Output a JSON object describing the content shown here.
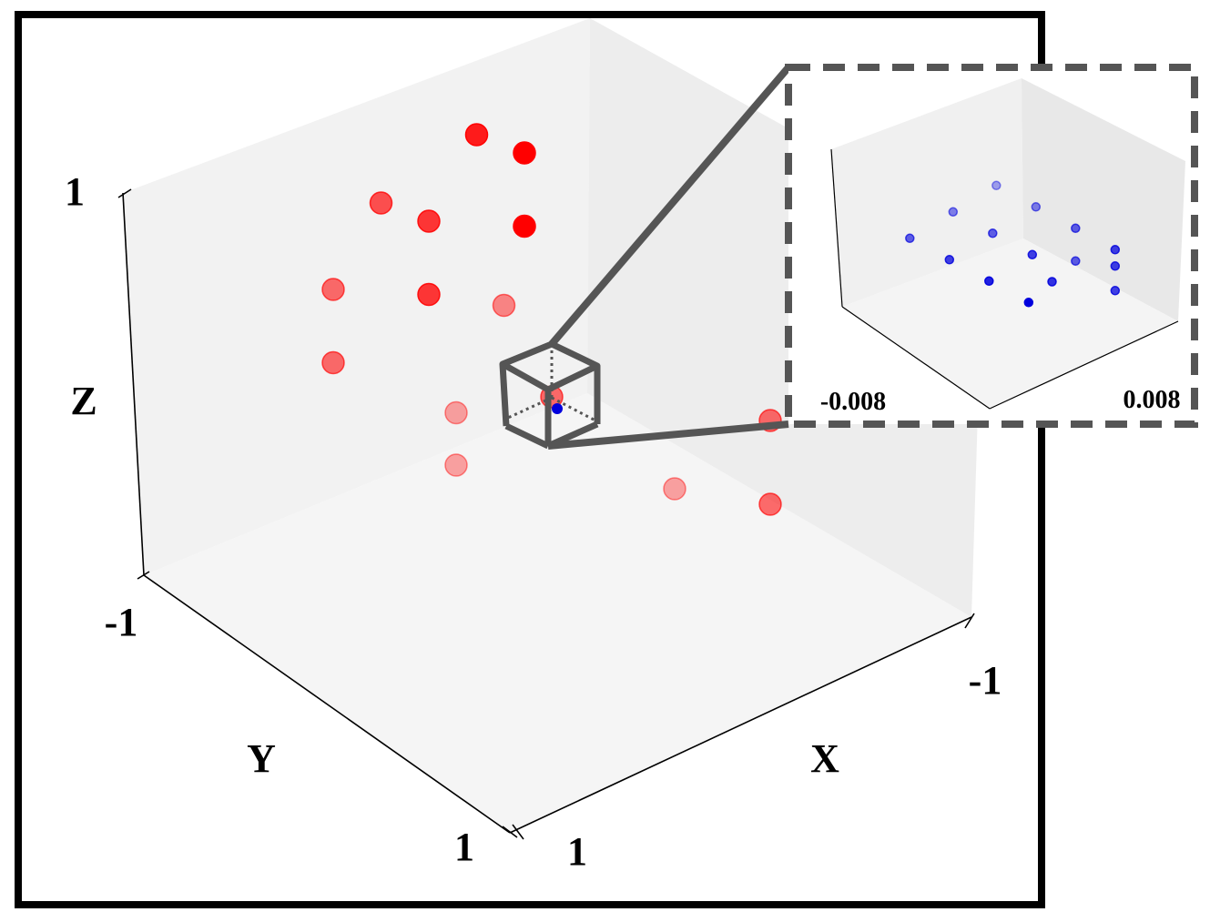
{
  "chart_data": [
    {
      "type": "scatter",
      "projection": "3d",
      "title": "",
      "axes": {
        "x": {
          "label": "X",
          "range": [
            1,
            -1
          ],
          "tick_labels": [
            "1",
            "-1"
          ]
        },
        "y": {
          "label": "Y",
          "range": [
            -1,
            1
          ],
          "tick_labels": [
            "-1",
            "1"
          ]
        },
        "z": {
          "label": "Z",
          "range": [
            -1,
            1
          ],
          "tick_labels": [
            "-1",
            "1"
          ]
        }
      },
      "grid": false,
      "colors": {
        "main_points": "#ff0000",
        "inset_points": "#0000dd",
        "zoom_box": "#555555"
      },
      "series": [
        {
          "color": "#ff0000",
          "points": [
            {
              "x": 0.5,
              "y": 0.0,
              "z": -0.2
            },
            {
              "x": 0.5,
              "y": 0.5,
              "z": -0.2
            },
            {
              "x": 0.5,
              "y": 0.5,
              "z": -0.6
            },
            {
              "x": 0.0,
              "y": 0.0,
              "z": 0.0
            },
            {
              "x": 0.0,
              "y": -0.5,
              "z": 0.0
            },
            {
              "x": 0.0,
              "y": -0.5,
              "z": 0.25
            },
            {
              "x": 0.0,
              "y": -0.25,
              "z": 0.6
            },
            {
              "x": -0.5,
              "y": -0.5,
              "z": 0.25
            },
            {
              "x": -0.5,
              "y": 0.0,
              "z": 0.25
            },
            {
              "x": -0.5,
              "y": 0.5,
              "z": 0.25
            },
            {
              "x": -0.5,
              "y": -0.5,
              "z": 0.6
            },
            {
              "x": -0.5,
              "y": 0.0,
              "z": 0.6
            },
            {
              "x": -0.5,
              "y": -0.25,
              "z": 0.85
            },
            {
              "x": -0.5,
              "y": 0.5,
              "z": 0.6
            },
            {
              "x": -0.5,
              "y": 0.25,
              "z": 0.85
            }
          ]
        }
      ],
      "zoom_region_center": {
        "x": 0.0,
        "y": 0.0,
        "z": 0.0
      }
    },
    {
      "type": "scatter",
      "projection": "3d",
      "title": "",
      "inset": true,
      "axes": {
        "range": [
          -0.008,
          0.008
        ],
        "tick_labels": [
          "-0.008",
          "0.008"
        ]
      },
      "series": [
        {
          "color": "#0000dd",
          "points": [
            {
              "x": -0.004,
              "y": -0.006,
              "z": 0.002
            },
            {
              "x": -0.004,
              "y": -0.002,
              "z": 0.002
            },
            {
              "x": -0.004,
              "y": 0.002,
              "z": 0.002
            },
            {
              "x": -0.004,
              "y": 0.006,
              "z": 0.002
            },
            {
              "x": 0.0,
              "y": -0.006,
              "z": 0.004
            },
            {
              "x": 0.0,
              "y": -0.002,
              "z": 0.004
            },
            {
              "x": 0.0,
              "y": 0.002,
              "z": 0.004
            },
            {
              "x": 0.0,
              "y": 0.004,
              "z": 0.0
            },
            {
              "x": 0.004,
              "y": -0.006,
              "z": 0.006
            },
            {
              "x": 0.004,
              "y": -0.002,
              "z": 0.006
            },
            {
              "x": 0.004,
              "y": 0.002,
              "z": 0.006
            },
            {
              "x": 0.004,
              "y": 0.006,
              "z": 0.006
            },
            {
              "x": 0.004,
              "y": 0.006,
              "z": 0.002
            },
            {
              "x": 0.004,
              "y": 0.002,
              "z": -0.002
            },
            {
              "x": 0.004,
              "y": 0.006,
              "z": -0.004
            }
          ]
        }
      ]
    }
  ]
}
